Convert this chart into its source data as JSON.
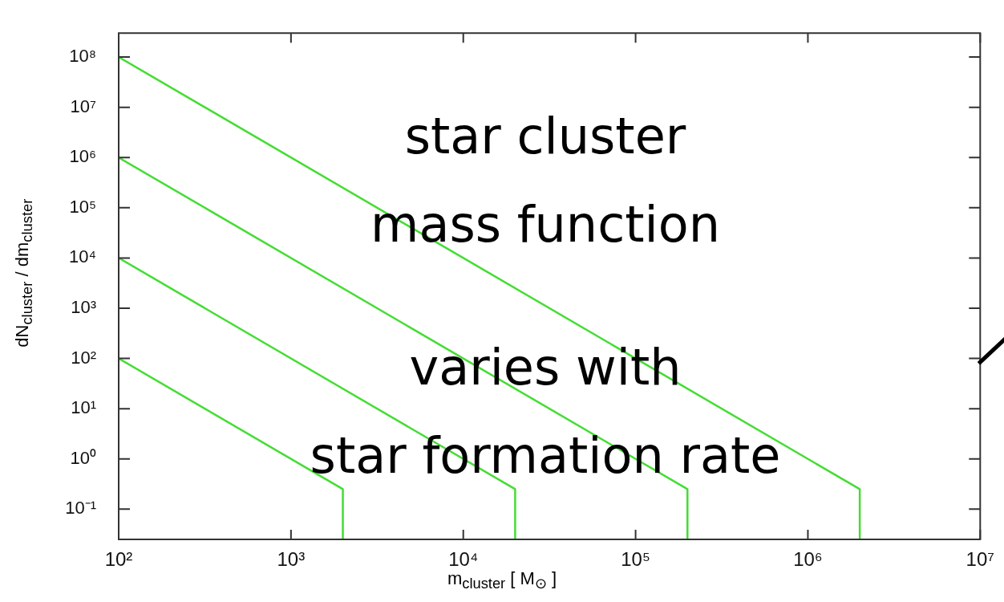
{
  "chart_data": {
    "type": "line",
    "xlabel": "m$_{cluster}$   [ M$_{⊙}$ ]",
    "ylabel": "dN$_{cluster}$ / dm$_{cluster}$",
    "log": "xy",
    "grid": false,
    "legend": false,
    "marker": "none",
    "line_style": "solid",
    "xlim": [
      100,
      10000000
    ],
    "ylim": [
      0.025,
      300000000
    ],
    "xticks": [
      {
        "value": 100,
        "label": "10²"
      },
      {
        "value": 1000,
        "label": "10³"
      },
      {
        "value": 10000,
        "label": "10⁴"
      },
      {
        "value": 100000,
        "label": "10⁵"
      },
      {
        "value": 1000000,
        "label": "10⁶"
      },
      {
        "value": 10000000,
        "label": "10⁷"
      }
    ],
    "yticks": [
      {
        "value": 0.1,
        "label": "10⁻¹"
      },
      {
        "value": 1,
        "label": "10⁰"
      },
      {
        "value": 10,
        "label": "10¹"
      },
      {
        "value": 100,
        "label": "10²"
      },
      {
        "value": 1000,
        "label": "10³"
      },
      {
        "value": 10000,
        "label": "10⁴"
      },
      {
        "value": 100000,
        "label": "10⁵"
      },
      {
        "value": 1000000,
        "label": "10⁶"
      },
      {
        "value": 10000000,
        "label": "10⁷"
      },
      {
        "value": 100000000,
        "label": "10⁸"
      }
    ],
    "series": [
      {
        "color": "#44dd33",
        "x": [
          100,
          2000,
          2000
        ],
        "values": [
          100,
          0.25,
          0.025
        ]
      },
      {
        "color": "#44dd33",
        "x": [
          100,
          20000,
          20000
        ],
        "values": [
          10000,
          0.25,
          0.025
        ]
      },
      {
        "color": "#44dd33",
        "x": [
          100,
          200000,
          200000
        ],
        "values": [
          1000000,
          0.25,
          0.025
        ]
      },
      {
        "color": "#44dd33",
        "x": [
          100,
          2000000,
          2000000
        ],
        "values": [
          100000000,
          0.25,
          0.025
        ]
      }
    ],
    "annotations": [
      "star cluster\nmass function\nvaries with\nstar formation rate"
    ]
  }
}
